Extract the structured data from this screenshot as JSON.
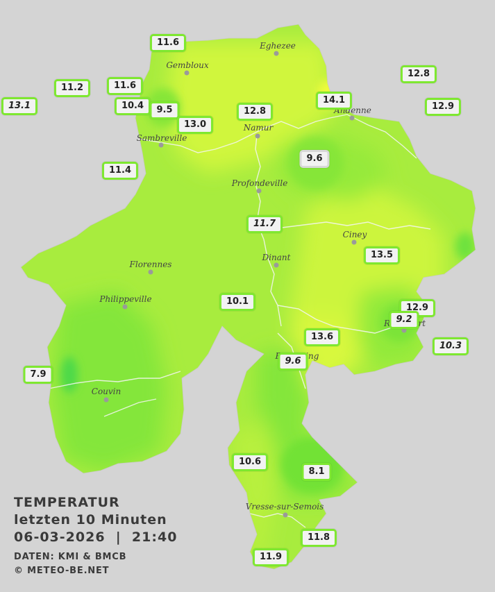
{
  "colors": {
    "background": "#d4d4d4",
    "region_base": "#a8ec3e",
    "warm": "#ccf53e",
    "warmer": "#e6fa3a",
    "cool": "#7fe636",
    "coolest": "#4ed94a",
    "station_border": "#7ee830",
    "river": "#f4f4f4"
  },
  "cities": [
    {
      "name": "Eghezee"
    },
    {
      "name": "Gembloux"
    },
    {
      "name": "Andenne"
    },
    {
      "name": "Namur"
    },
    {
      "name": "Sambreville"
    },
    {
      "name": "Profondeville"
    },
    {
      "name": "Ciney"
    },
    {
      "name": "Dinant"
    },
    {
      "name": "Florennes"
    },
    {
      "name": "Philippeville"
    },
    {
      "name": "Rochefort"
    },
    {
      "name": "Beauraing"
    },
    {
      "name": "Couvin"
    },
    {
      "name": "Vresse-sur-Semois"
    }
  ],
  "stations": [
    {
      "value": "11.6",
      "italic": false
    },
    {
      "value": "11.2",
      "italic": false
    },
    {
      "value": "11.6",
      "italic": false
    },
    {
      "value": "13.1",
      "italic": true
    },
    {
      "value": "10.4",
      "italic": false
    },
    {
      "value": "9.5",
      "italic": false
    },
    {
      "value": "13.0",
      "italic": false
    },
    {
      "value": "12.8",
      "italic": false
    },
    {
      "value": "14.1",
      "italic": false
    },
    {
      "value": "12.8",
      "italic": false
    },
    {
      "value": "12.9",
      "italic": false
    },
    {
      "value": "11.4",
      "italic": false
    },
    {
      "value": "9.6",
      "italic": false
    },
    {
      "value": "11.7",
      "italic": true
    },
    {
      "value": "13.5",
      "italic": false
    },
    {
      "value": "10.1",
      "italic": false
    },
    {
      "value": "12.9",
      "italic": false
    },
    {
      "value": "9.2",
      "italic": true
    },
    {
      "value": "13.6",
      "italic": false
    },
    {
      "value": "10.3",
      "italic": true
    },
    {
      "value": "9.6",
      "italic": true
    },
    {
      "value": "7.9",
      "italic": false
    },
    {
      "value": "10.6",
      "italic": false
    },
    {
      "value": "8.1",
      "italic": false
    },
    {
      "value": "11.8",
      "italic": false
    },
    {
      "value": "11.9",
      "italic": false
    }
  ],
  "info": {
    "title": "TEMPERATUR",
    "subtitle": "letzten 10 Minuten",
    "datetime": "06-03-2026  |  21:40",
    "source": "DATEN: KMI & BMCB",
    "copyright": "© METEO-BE.NET"
  }
}
